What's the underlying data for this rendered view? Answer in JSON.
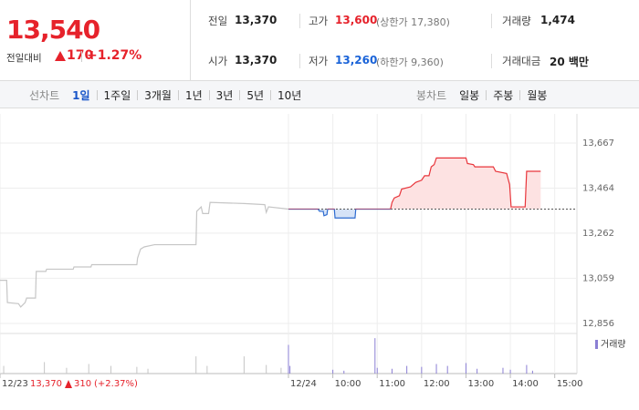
{
  "quote": {
    "price": "13,540",
    "change_label": "전일대비",
    "change": "170",
    "change_pct": "+1.27%"
  },
  "stats": [
    {
      "label": "전일",
      "value": "13,370"
    },
    {
      "label": "고가",
      "value": "13,600",
      "note": "(상한가 17,380)"
    },
    {
      "label": "거래량",
      "value": "1,474"
    },
    {
      "label": "시가",
      "value": "13,370"
    },
    {
      "label": "저가",
      "value": "13,260",
      "note": "(하한가 9,360)"
    },
    {
      "label": "거래대금",
      "value": "20 백만"
    }
  ],
  "line_tabs": {
    "label": "선차트",
    "items": [
      "1일",
      "1주일",
      "3개월",
      "1년",
      "3년",
      "5년",
      "10년"
    ],
    "active": 0
  },
  "candle_tabs": {
    "label": "봉차트",
    "items": [
      "일봉",
      "주봉",
      "월봉"
    ]
  },
  "chart_data": {
    "type": "line",
    "xlim": [
      -390,
      390
    ],
    "ylim": [
      12815,
      13798
    ],
    "xticks": [
      {
        "value": -390,
        "label": "12/23"
      },
      {
        "value": 0,
        "label": "12/24"
      },
      {
        "value": 60,
        "label": "10:00"
      },
      {
        "value": 120,
        "label": "11:00"
      },
      {
        "value": 180,
        "label": "12:00"
      },
      {
        "value": 240,
        "label": "13:00"
      },
      {
        "value": 300,
        "label": "14:00"
      },
      {
        "value": 360,
        "label": "15:00"
      }
    ],
    "yticks": [
      {
        "value": 13667,
        "label": "13,667"
      },
      {
        "value": 13464,
        "label": "13,464"
      },
      {
        "value": 13262,
        "label": "13,262"
      },
      {
        "value": 13059,
        "label": "13,059"
      },
      {
        "value": 12856,
        "label": "12,856"
      }
    ],
    "grid": true,
    "baseline": 13370,
    "annotations": {
      "prev_close": "13,370",
      "prev_change": "310",
      "prev_change_pct": "(+2.37%)"
    },
    "series": [
      {
        "color": "#c6c6c6",
        "x": [
          -390,
          -381,
          -380,
          -365,
          -362,
          -356,
          -354,
          -342,
          -341,
          -328,
          -327,
          -291,
          -290,
          -267,
          -266,
          -205,
          -204,
          -200,
          -195,
          -181,
          -125,
          -124,
          -118,
          -116,
          -108,
          -106,
          -60,
          -32,
          -30,
          -27,
          0
        ],
        "values": [
          13050,
          13050,
          12950,
          12945,
          12930,
          12950,
          12970,
          12970,
          13090,
          13090,
          13100,
          13100,
          13110,
          13110,
          13120,
          13120,
          13150,
          13190,
          13200,
          13210,
          13210,
          13360,
          13380,
          13350,
          13350,
          13400,
          13395,
          13390,
          13355,
          13380,
          13370
        ]
      },
      {
        "up_color": "#e8353b",
        "down_color": "#2d6bd0",
        "fill_up": "#fde2e2",
        "fill_down": "#d6e3f7",
        "x": [
          0,
          40,
          42,
          47,
          48,
          52,
          53,
          62,
          63,
          90,
          91,
          138,
          140,
          143,
          150,
          153,
          165,
          172,
          180,
          184,
          190,
          193,
          197,
          200,
          240,
          242,
          250,
          252,
          277,
          280,
          295,
          299,
          301,
          320,
          322,
          341
        ],
        "values": [
          13370,
          13370,
          13360,
          13360,
          13340,
          13345,
          13370,
          13370,
          13330,
          13330,
          13370,
          13370,
          13400,
          13420,
          13430,
          13460,
          13470,
          13490,
          13500,
          13520,
          13520,
          13560,
          13570,
          13600,
          13600,
          13575,
          13570,
          13560,
          13560,
          13540,
          13530,
          13480,
          13380,
          13380,
          13540,
          13540
        ]
      }
    ],
    "volume": {
      "name": "거래량",
      "ylim": [
        0,
        200
      ],
      "legend_color": "#8b7fd4",
      "series": [
        {
          "color": "#c6c6c6",
          "x": [
            -385,
            -330,
            -300,
            -270,
            -240,
            -205,
            -190,
            -125,
            -110,
            -60,
            -30,
            -10
          ],
          "values": [
            40,
            60,
            30,
            50,
            40,
            35,
            25,
            90,
            40,
            90,
            45,
            30
          ]
        },
        {
          "color": "#8b7fd4",
          "x": [
            0,
            2,
            60,
            75,
            117,
            120,
            140,
            160,
            180,
            200,
            215,
            240,
            255,
            290,
            300,
            322,
            330
          ],
          "values": [
            150,
            40,
            20,
            15,
            185,
            30,
            25,
            40,
            35,
            50,
            40,
            55,
            25,
            30,
            20,
            45,
            15
          ]
        }
      ]
    }
  }
}
